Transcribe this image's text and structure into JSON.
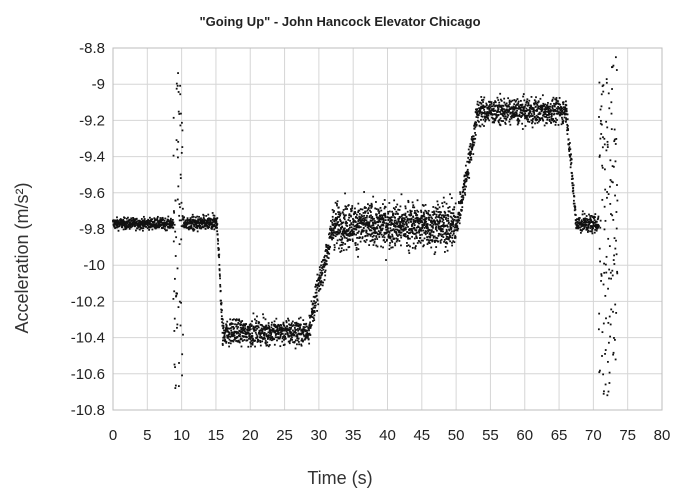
{
  "chart_data": {
    "type": "scatter",
    "title": "\"Going Up\" - John Hancock Elevator Chicago",
    "xlabel": "Time (s)",
    "ylabel": "Acceleration (m/s²)",
    "xlim": [
      0,
      80
    ],
    "ylim": [
      -10.8,
      -8.8
    ],
    "x_ticks": [
      "0",
      "5",
      "10",
      "15",
      "20",
      "25",
      "30",
      "35",
      "40",
      "45",
      "50",
      "55",
      "60",
      "65",
      "70",
      "75",
      "80"
    ],
    "y_ticks": [
      "-8.8",
      "-9",
      "-9.2",
      "-9.4",
      "-9.6",
      "-9.8",
      "-10",
      "-10.2",
      "-10.4",
      "-10.6",
      "-10.8"
    ],
    "grid": true,
    "marker_color": "#111111",
    "segments": [
      {
        "x_start": 0,
        "x_end": 8.8,
        "mean": -9.77,
        "noise": 0.03,
        "step": 0.02
      },
      {
        "x_start": 8.8,
        "x_end": 10.2,
        "mean": -9.8,
        "noise": 0.9,
        "step": 0.02
      },
      {
        "x_start": 10.2,
        "x_end": 15.2,
        "mean": -9.77,
        "noise": 0.04,
        "step": 0.02
      },
      {
        "x_start": 15.2,
        "x_end": 16.0,
        "ramp_to": -10.4,
        "mean": -9.77,
        "noise": 0.06,
        "step": 0.02
      },
      {
        "x_start": 16.0,
        "x_end": 28.5,
        "mean": -10.37,
        "noise": 0.07,
        "step": 0.02
      },
      {
        "x_start": 28.5,
        "x_end": 32.0,
        "ramp_to": -9.8,
        "mean": -10.35,
        "noise": 0.08,
        "step": 0.02
      },
      {
        "x_start": 32.0,
        "x_end": 50.0,
        "mean": -9.78,
        "noise": 0.12,
        "step": 0.015
      },
      {
        "x_start": 50.0,
        "x_end": 53.0,
        "ramp_to": -9.2,
        "mean": -9.8,
        "noise": 0.08,
        "step": 0.02
      },
      {
        "x_start": 53.0,
        "x_end": 66.0,
        "mean": -9.15,
        "noise": 0.07,
        "step": 0.02
      },
      {
        "x_start": 66.0,
        "x_end": 67.5,
        "ramp_to": -9.77,
        "mean": -9.12,
        "noise": 0.06,
        "step": 0.02
      },
      {
        "x_start": 67.5,
        "x_end": 70.8,
        "mean": -9.77,
        "noise": 0.05,
        "step": 0.02
      },
      {
        "x_start": 70.8,
        "x_end": 73.5,
        "mean": -9.8,
        "noise": 0.95,
        "step": 0.02
      }
    ]
  }
}
